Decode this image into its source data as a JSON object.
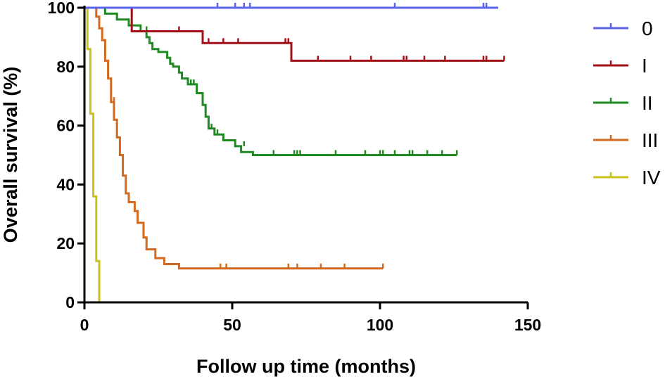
{
  "chart_data": {
    "type": "line",
    "subtype": "kaplan-meier step",
    "xlabel": "Follow up time (months)",
    "ylabel": "Overall survival (%)",
    "xlim": [
      0,
      150
    ],
    "ylim": [
      0,
      100
    ],
    "xticks": [
      0,
      50,
      100,
      150
    ],
    "yticks": [
      0,
      20,
      40,
      60,
      80,
      100
    ],
    "grid": false,
    "legend_position": "right",
    "series": [
      {
        "name": "0",
        "color": "#5b63e8",
        "steps": [
          [
            0,
            100
          ],
          [
            140,
            100
          ]
        ],
        "censored": [
          [
            45,
            100
          ],
          [
            51,
            100
          ],
          [
            54,
            100
          ],
          [
            56,
            100
          ],
          [
            105,
            100
          ],
          [
            135,
            100
          ],
          [
            136,
            100
          ]
        ]
      },
      {
        "name": "I",
        "color": "#a01018",
        "steps": [
          [
            0,
            100
          ],
          [
            16,
            100
          ],
          [
            16,
            92
          ],
          [
            40,
            92
          ],
          [
            40,
            88
          ],
          [
            70,
            88
          ],
          [
            70,
            82
          ],
          [
            142,
            82
          ]
        ],
        "censored": [
          [
            32,
            92
          ],
          [
            42,
            88
          ],
          [
            47,
            88
          ],
          [
            52,
            88
          ],
          [
            68,
            88
          ],
          [
            69,
            88
          ],
          [
            79,
            82
          ],
          [
            90,
            82
          ],
          [
            97,
            82
          ],
          [
            108,
            82
          ],
          [
            109,
            82
          ],
          [
            115,
            82
          ],
          [
            122,
            82
          ],
          [
            135,
            82
          ],
          [
            136,
            82
          ],
          [
            142,
            82
          ]
        ]
      },
      {
        "name": "II",
        "color": "#1f8a22",
        "steps": [
          [
            0,
            100
          ],
          [
            7,
            100
          ],
          [
            7,
            98
          ],
          [
            11,
            98
          ],
          [
            11,
            96
          ],
          [
            15,
            96
          ],
          [
            15,
            94
          ],
          [
            19,
            94
          ],
          [
            19,
            92
          ],
          [
            21,
            92
          ],
          [
            21,
            90
          ],
          [
            22,
            90
          ],
          [
            22,
            88
          ],
          [
            23,
            88
          ],
          [
            23,
            86
          ],
          [
            25,
            86
          ],
          [
            25,
            85
          ],
          [
            28,
            85
          ],
          [
            28,
            83
          ],
          [
            29,
            83
          ],
          [
            29,
            81
          ],
          [
            30,
            81
          ],
          [
            30,
            80
          ],
          [
            32,
            80
          ],
          [
            32,
            78
          ],
          [
            33,
            78
          ],
          [
            33,
            76
          ],
          [
            35,
            76
          ],
          [
            35,
            74
          ],
          [
            38,
            74
          ],
          [
            38,
            71
          ],
          [
            40,
            71
          ],
          [
            40,
            67
          ],
          [
            41,
            67
          ],
          [
            41,
            63
          ],
          [
            42,
            63
          ],
          [
            42,
            59
          ],
          [
            44,
            59
          ],
          [
            44,
            57
          ],
          [
            47,
            57
          ],
          [
            47,
            55
          ],
          [
            51,
            55
          ],
          [
            51,
            53
          ],
          [
            53,
            53
          ],
          [
            53,
            51
          ],
          [
            57,
            51
          ],
          [
            57,
            50
          ],
          [
            126,
            50
          ]
        ],
        "censored": [
          [
            21,
            92
          ],
          [
            36,
            74
          ],
          [
            37,
            74
          ],
          [
            43,
            59
          ],
          [
            45,
            57
          ],
          [
            54,
            53
          ],
          [
            64,
            50
          ],
          [
            71,
            50
          ],
          [
            72,
            50
          ],
          [
            73,
            50
          ],
          [
            85,
            50
          ],
          [
            95,
            50
          ],
          [
            100,
            50
          ],
          [
            101,
            50
          ],
          [
            105,
            50
          ],
          [
            110,
            50
          ],
          [
            111,
            50
          ],
          [
            116,
            50
          ],
          [
            121,
            50
          ],
          [
            126,
            50
          ]
        ]
      },
      {
        "name": "III",
        "color": "#d2691e",
        "steps": [
          [
            0,
            100
          ],
          [
            4,
            100
          ],
          [
            4,
            97
          ],
          [
            5,
            97
          ],
          [
            5,
            93
          ],
          [
            6,
            93
          ],
          [
            6,
            89
          ],
          [
            7,
            89
          ],
          [
            7,
            82
          ],
          [
            8,
            82
          ],
          [
            8,
            76
          ],
          [
            9,
            76
          ],
          [
            9,
            68
          ],
          [
            10,
            68
          ],
          [
            10,
            62
          ],
          [
            11,
            62
          ],
          [
            11,
            56
          ],
          [
            12,
            56
          ],
          [
            12,
            50
          ],
          [
            13,
            50
          ],
          [
            13,
            43
          ],
          [
            14,
            43
          ],
          [
            14,
            37
          ],
          [
            15,
            37
          ],
          [
            15,
            34
          ],
          [
            17,
            34
          ],
          [
            17,
            31
          ],
          [
            18,
            31
          ],
          [
            18,
            27
          ],
          [
            20,
            27
          ],
          [
            20,
            22
          ],
          [
            21,
            22
          ],
          [
            21,
            18
          ],
          [
            24,
            18
          ],
          [
            24,
            15
          ],
          [
            27,
            15
          ],
          [
            27,
            13
          ],
          [
            32,
            13
          ],
          [
            32,
            11.5
          ],
          [
            101,
            11.5
          ]
        ],
        "censored": [
          [
            10,
            68
          ],
          [
            46,
            11.5
          ],
          [
            48,
            11.5
          ],
          [
            69,
            11.5
          ],
          [
            72,
            11.5
          ],
          [
            80,
            11.5
          ],
          [
            88,
            11.5
          ],
          [
            101,
            11.5
          ]
        ]
      },
      {
        "name": "IV",
        "color": "#c8c21a",
        "steps": [
          [
            0,
            100
          ],
          [
            1,
            100
          ],
          [
            1,
            86
          ],
          [
            2,
            86
          ],
          [
            2,
            64
          ],
          [
            3,
            64
          ],
          [
            3,
            36
          ],
          [
            4,
            36
          ],
          [
            4,
            14
          ],
          [
            5,
            14
          ],
          [
            5,
            0
          ]
        ],
        "censored": [
          [
            5,
            0
          ]
        ]
      }
    ]
  }
}
